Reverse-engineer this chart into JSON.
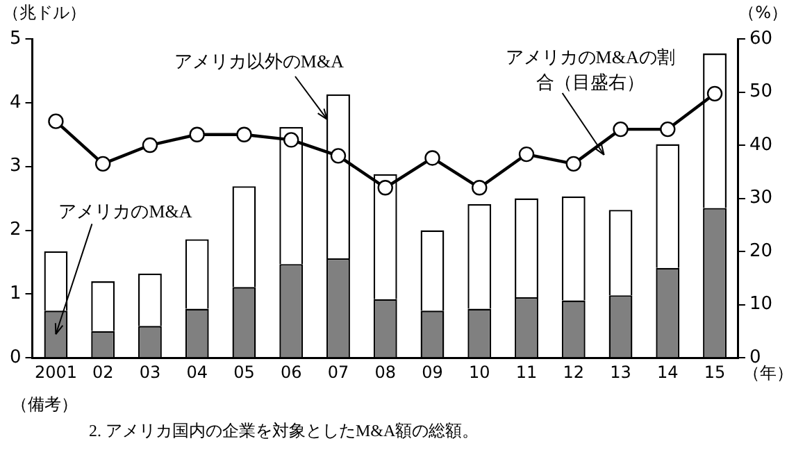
{
  "chart_data": {
    "type": "bar",
    "stacked": true,
    "ylabel": "（兆ドル）",
    "y2label": "（%）",
    "xlabel": "（年）",
    "categories": [
      "2001",
      "02",
      "03",
      "04",
      "05",
      "06",
      "07",
      "08",
      "09",
      "10",
      "11",
      "12",
      "13",
      "14",
      "15"
    ],
    "series": [
      {
        "name": "アメリカのM&A",
        "color": "#808080",
        "values": [
          0.74,
          0.42,
          0.5,
          0.77,
          1.11,
          1.47,
          1.56,
          0.92,
          0.74,
          0.77,
          0.95,
          0.9,
          0.98,
          1.41,
          2.35
        ]
      },
      {
        "name": "アメリカ以外のM&A",
        "color": "#ffffff",
        "values": [
          0.93,
          0.78,
          0.82,
          1.09,
          1.58,
          2.15,
          2.57,
          1.96,
          1.26,
          1.64,
          1.55,
          1.63,
          1.34,
          1.94,
          2.42
        ]
      },
      {
        "name": "アメリカのM&Aの割合（目盛右）",
        "type": "line",
        "axis": "y2",
        "color": "#000000",
        "values": [
          44.5,
          36.5,
          40,
          42,
          42,
          41,
          38,
          32,
          37.6,
          32,
          38.3,
          36.5,
          43,
          43,
          49.7
        ]
      }
    ],
    "ylim": [
      0,
      5
    ],
    "yticks": [
      0,
      1,
      2,
      3,
      4,
      5
    ],
    "y2lim": [
      0,
      60
    ],
    "y2ticks": [
      0,
      10,
      20,
      30,
      40,
      50,
      60
    ],
    "grid": false,
    "legend": false,
    "marker": "circle",
    "line_style": "solid",
    "annotations": [
      "（備考）",
      "2. アメリカ国内の企業を対象としたM&A額の総額。"
    ]
  }
}
